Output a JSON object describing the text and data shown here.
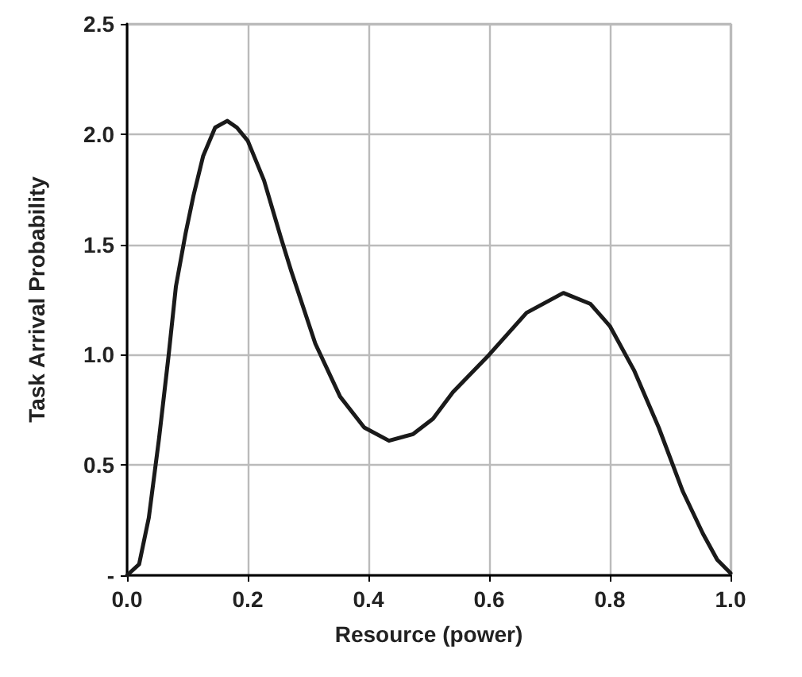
{
  "chart_data": {
    "type": "line",
    "xlabel": "Resource (power)",
    "ylabel": "Task Arrival Probability",
    "xlim": [
      0,
      1
    ],
    "ylim": [
      0,
      2.5
    ],
    "xticks": [
      {
        "value": 0,
        "label": "0.0"
      },
      0.2,
      0.4,
      0.6,
      0.8,
      {
        "value": 1,
        "label": "1.0"
      }
    ],
    "yticks": [
      {
        "value": 0,
        "label": "-"
      },
      0.5,
      {
        "value": 1,
        "label": "1.0"
      },
      1.5,
      {
        "value": 2,
        "label": "2.0"
      },
      2.5
    ],
    "grid": true,
    "marker": "none",
    "line_style": "solid",
    "series": [
      {
        "color": "#1a1a1a",
        "x": [
          0,
          0.02,
          0.036,
          0.053,
          0.069,
          0.081,
          0.097,
          0.11,
          0.126,
          0.146,
          0.166,
          0.182,
          0.2,
          0.227,
          0.255,
          0.272,
          0.312,
          0.353,
          0.393,
          0.434,
          0.474,
          0.507,
          0.54,
          0.6,
          0.662,
          0.723,
          0.768,
          0.8,
          0.84,
          0.881,
          0.921,
          0.954,
          0.978,
          1.0
        ],
        "values": [
          0,
          0.05,
          0.26,
          0.62,
          1.0,
          1.31,
          1.55,
          1.72,
          1.9,
          2.03,
          2.06,
          2.03,
          1.97,
          1.79,
          1.53,
          1.38,
          1.05,
          0.81,
          0.67,
          0.61,
          0.64,
          0.71,
          0.83,
          1.0,
          1.19,
          1.28,
          1.23,
          1.13,
          0.93,
          0.67,
          0.38,
          0.19,
          0.07,
          0.01
        ]
      }
    ]
  }
}
